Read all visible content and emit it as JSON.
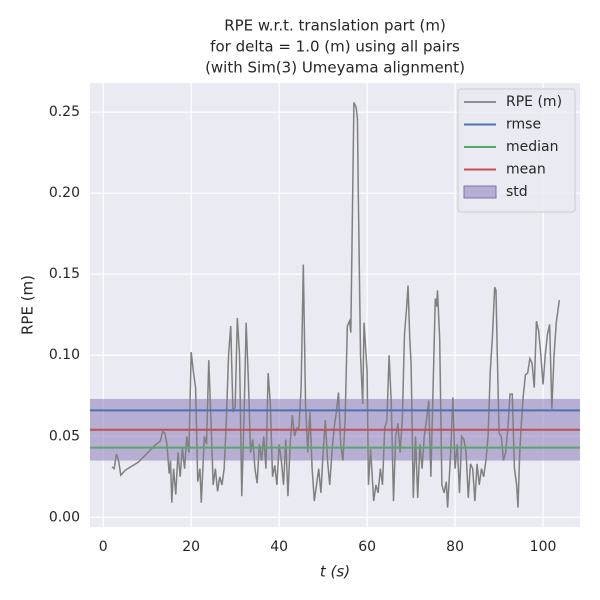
{
  "chart_data": {
    "type": "line",
    "title": [
      "RPE w.r.t. translation part (m)",
      "for delta = 1.0 (m) using all pairs",
      "(with Sim(3) Umeyama alignment)"
    ],
    "xlabel": "t (s)",
    "ylabel": "RPE (m)",
    "xlim": [
      -3,
      108.4
    ],
    "ylim": [
      -0.006,
      0.268
    ],
    "xticks": [
      0,
      20,
      40,
      60,
      80,
      100
    ],
    "yticks": [
      {
        "value": 0,
        "label": "0.00"
      },
      {
        "value": 0.05,
        "label": "0.05"
      },
      {
        "value": 0.1,
        "label": "0.10"
      },
      {
        "value": 0.15,
        "label": "0.15"
      },
      {
        "value": 0.2,
        "label": "0.20"
      },
      {
        "value": 0.25,
        "label": "0.25"
      }
    ],
    "grid": true,
    "legend": "upper right",
    "series": [
      {
        "name": "RPE (m)",
        "color": "#808080",
        "x": [
          2,
          2.5,
          3,
          3.5,
          4,
          5,
          8,
          12,
          13,
          13.5,
          14,
          14.5,
          15,
          15.3,
          15.6,
          16,
          16.5,
          17,
          17.5,
          18,
          18.5,
          19,
          19.5,
          20,
          20.5,
          21,
          21.5,
          22,
          22.3,
          23,
          23.5,
          24,
          24.5,
          25,
          25.5,
          26,
          26.5,
          27,
          27.5,
          28,
          28.5,
          29,
          29.5,
          30,
          30.5,
          31,
          31.5,
          32,
          32.5,
          33,
          33.5,
          34,
          34.5,
          35,
          35.5,
          36,
          36.5,
          37,
          37.5,
          38,
          38.5,
          39,
          39.5,
          40,
          40.5,
          41,
          41.5,
          42,
          42.5,
          43,
          43.5,
          44,
          44.5,
          45,
          45.5,
          46,
          46.5,
          47,
          47.5,
          48,
          48.5,
          49,
          49.5,
          50,
          50.5,
          51,
          51.5,
          52,
          52.5,
          53,
          53.5,
          54,
          54.5,
          55,
          55.5,
          56,
          56.3,
          57,
          57.5,
          57.8,
          58,
          58.5,
          59,
          59.3,
          60,
          60.3,
          60.8,
          61.5,
          62,
          62.5,
          63,
          63.5,
          64,
          64.5,
          65,
          65.5,
          66,
          66.5,
          67,
          67.5,
          68,
          68.5,
          69,
          69.3,
          69.7,
          70,
          70.5,
          71,
          71.5,
          72,
          72.5,
          73,
          73.5,
          74,
          74.5,
          75,
          75.5,
          75.8,
          76,
          76.5,
          77,
          77.5,
          78,
          78.3,
          79,
          79.5,
          80,
          80.5,
          81,
          81.5,
          82,
          82.5,
          83,
          83.5,
          84,
          84.5,
          85,
          85.5,
          86,
          86.5,
          87,
          87.5,
          88,
          88.5,
          89,
          89.3,
          89.6,
          90,
          90.5,
          91,
          91.5,
          92,
          92.5,
          93,
          93.5,
          94,
          94.3,
          94.7,
          95,
          95.5,
          96,
          96.5,
          97,
          97.5,
          98,
          98.5,
          99,
          99.5,
          100,
          100.5,
          101,
          101.5,
          102,
          102.5,
          103,
          103.7
        ],
        "values": [
          0.031,
          0.03,
          0.039,
          0.035,
          0.026,
          0.029,
          0.034,
          0.045,
          0.047,
          0.053,
          0.052,
          0.045,
          0.027,
          0.035,
          0.009,
          0.03,
          0.014,
          0.04,
          0.025,
          0.043,
          0.03,
          0.05,
          0.04,
          0.102,
          0.09,
          0.08,
          0.022,
          0.03,
          0.009,
          0.05,
          0.045,
          0.097,
          0.06,
          0.02,
          0.03,
          0.016,
          0.025,
          0.02,
          0.03,
          0.06,
          0.1,
          0.118,
          0.065,
          0.068,
          0.123,
          0.1,
          0.013,
          0.06,
          0.12,
          0.085,
          0.04,
          0.048,
          0.03,
          0.021,
          0.045,
          0.035,
          0.05,
          0.03,
          0.089,
          0.07,
          0.025,
          0.032,
          0.02,
          0.045,
          0.035,
          0.02,
          0.048,
          0.013,
          0.045,
          0.063,
          0.05,
          0.055,
          0.055,
          0.08,
          0.156,
          0.07,
          0.04,
          0.065,
          0.03,
          0.01,
          0.02,
          0.03,
          0.015,
          0.04,
          0.06,
          0.035,
          0.02,
          0.04,
          0.055,
          0.065,
          0.077,
          0.045,
          0.035,
          0.06,
          0.118,
          0.121,
          0.114,
          0.256,
          0.253,
          0.246,
          0.2,
          0.1,
          0.07,
          0.12,
          0.09,
          0.02,
          0.042,
          0.01,
          0.02,
          0.015,
          0.03,
          0.02,
          0.055,
          0.06,
          0.1,
          0.07,
          0.01,
          0.05,
          0.058,
          0.04,
          0.06,
          0.113,
          0.13,
          0.143,
          0.11,
          0.095,
          0.012,
          0.05,
          0.012,
          0.045,
          0.03,
          0.05,
          0.06,
          0.072,
          0.025,
          0.08,
          0.135,
          0.13,
          0.14,
          0.11,
          0.02,
          0.015,
          0.022,
          0.006,
          0.04,
          0.074,
          0.03,
          0.045,
          0.015,
          0.05,
          0.048,
          0.04,
          0.012,
          0.033,
          0.03,
          0.01,
          0.033,
          0.02,
          0.03,
          0.025,
          0.035,
          0.05,
          0.09,
          0.112,
          0.142,
          0.14,
          0.1,
          0.052,
          0.05,
          0.035,
          0.04,
          0.055,
          0.076,
          0.076,
          0.03,
          0.02,
          0.006,
          0.04,
          0.055,
          0.075,
          0.088,
          0.089,
          0.098,
          0.095,
          0.08,
          0.121,
          0.115,
          0.1,
          0.082,
          0.1,
          0.113,
          0.119,
          0.067,
          0.1,
          0.12,
          0.134
        ]
      }
    ],
    "stats": [
      {
        "name": "rmse",
        "color": "#4c72b0",
        "value": 0.066
      },
      {
        "name": "median",
        "color": "#55a868",
        "value": 0.043
      },
      {
        "name": "mean",
        "color": "#c44e52",
        "value": 0.054
      }
    ],
    "std": {
      "name": "std",
      "color": "#8172b3",
      "value": 0.019
    }
  }
}
